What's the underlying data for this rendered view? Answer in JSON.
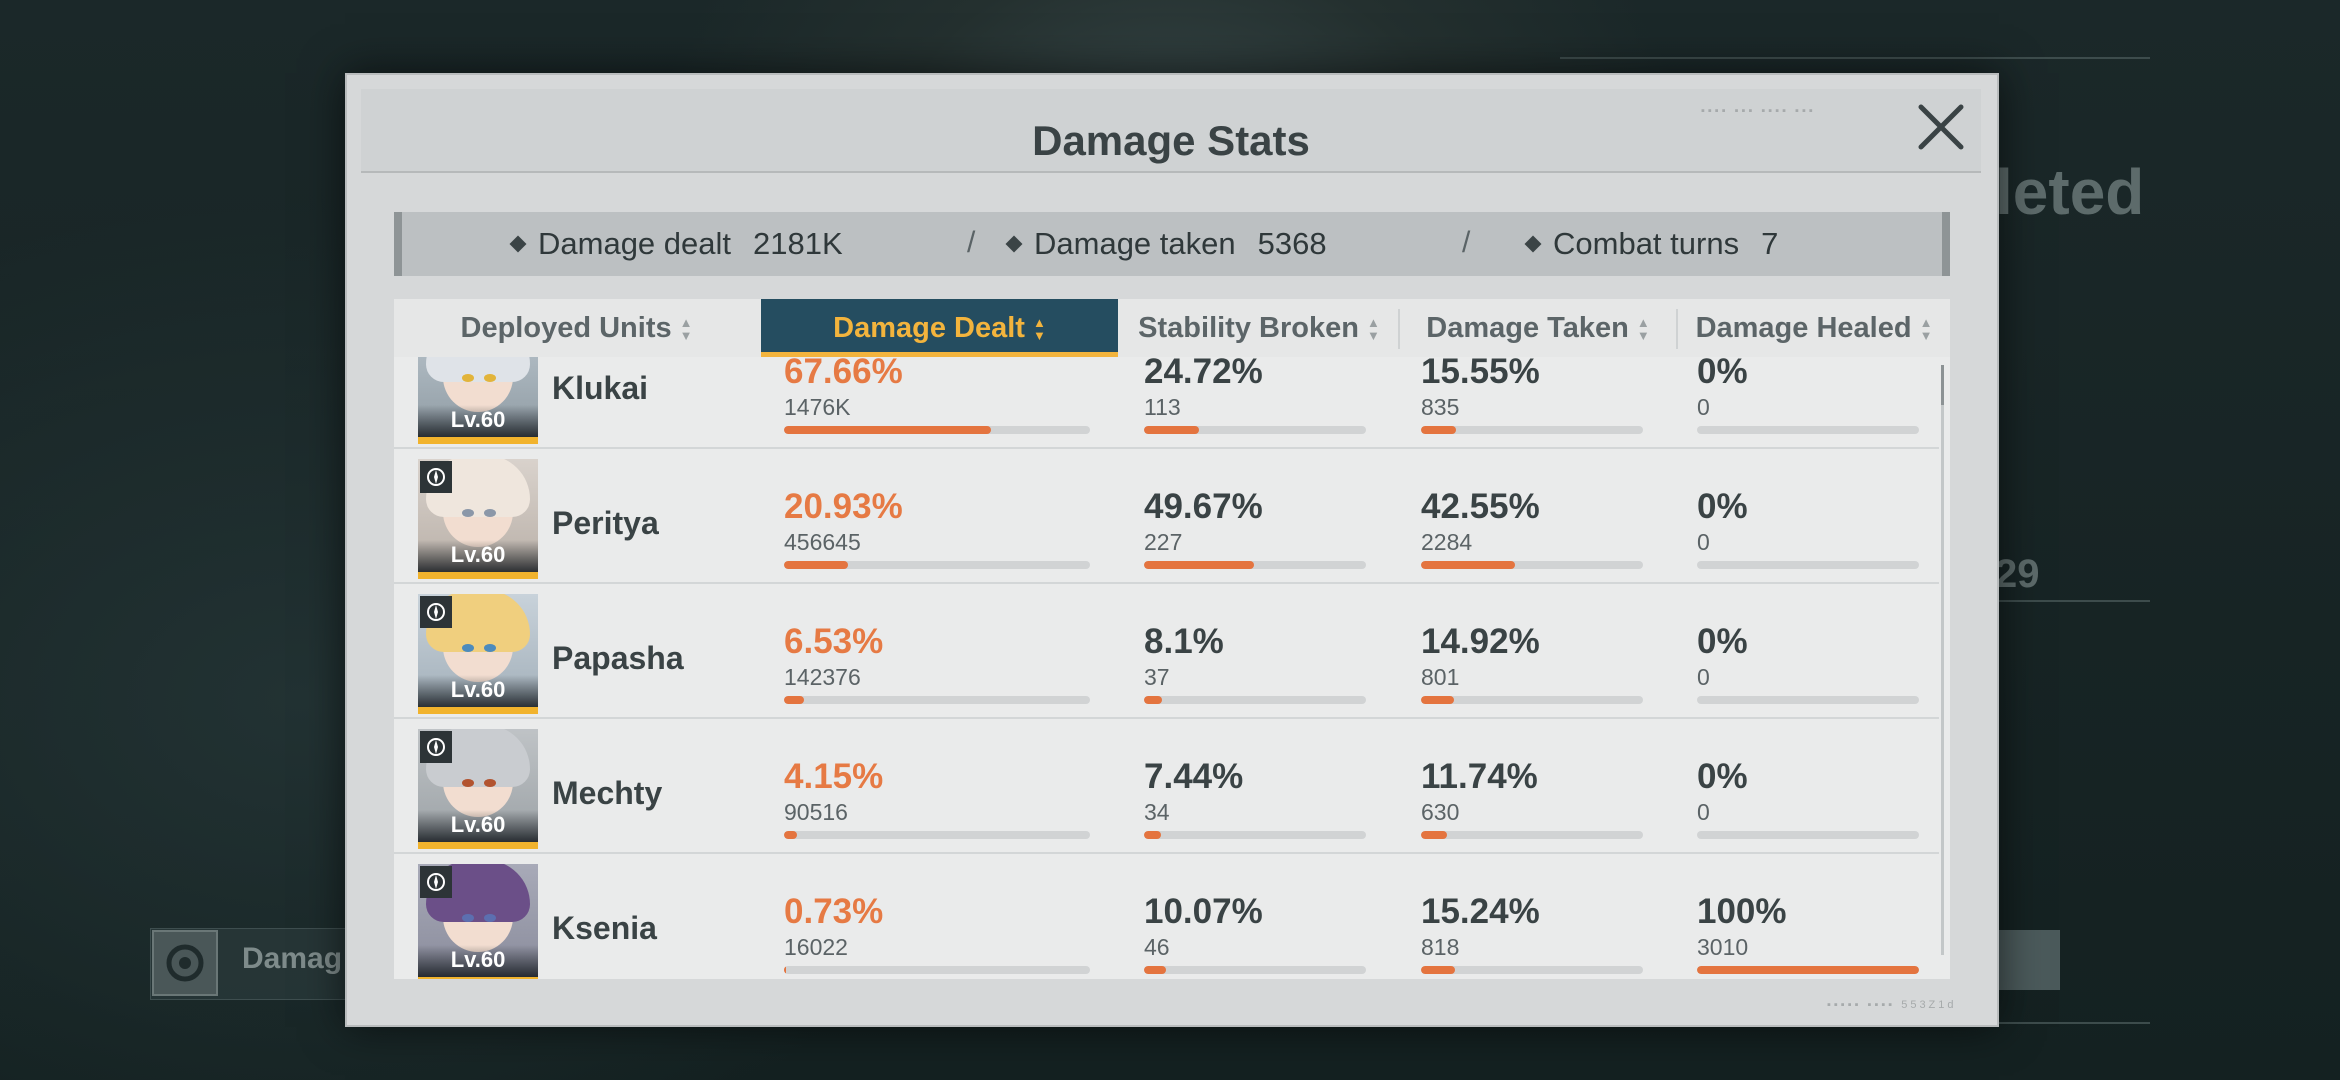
{
  "modal": {
    "title": "Damage Stats"
  },
  "summary": {
    "damage_dealt": {
      "label": "Damage dealt",
      "value": "2181K"
    },
    "damage_taken": {
      "label": "Damage taken",
      "value": "5368"
    },
    "combat_turns": {
      "label": "Combat turns",
      "value": "7"
    },
    "separator": "/"
  },
  "table": {
    "columns": [
      "Deployed Units",
      "Damage Dealt",
      "Stability Broken",
      "Damage Taken",
      "Damage Healed"
    ],
    "active_column": "Damage Dealt",
    "rows": [
      {
        "name": "Klukai",
        "level": "Lv.60",
        "dealt_pct": "67.66%",
        "dealt_val": "1476K",
        "dealt_frac": 0.6766,
        "stab_pct": "24.72%",
        "stab_val": "113",
        "stab_frac": 0.2472,
        "taken_pct": "15.55%",
        "taken_val": "835",
        "taken_frac": 0.1555,
        "healed_pct": "0%",
        "healed_val": "0",
        "healed_frac": 0
      },
      {
        "name": "Peritya",
        "level": "Lv.60",
        "dealt_pct": "20.93%",
        "dealt_val": "456645",
        "dealt_frac": 0.2093,
        "stab_pct": "49.67%",
        "stab_val": "227",
        "stab_frac": 0.4967,
        "taken_pct": "42.55%",
        "taken_val": "2284",
        "taken_frac": 0.4255,
        "healed_pct": "0%",
        "healed_val": "0",
        "healed_frac": 0
      },
      {
        "name": "Papasha",
        "level": "Lv.60",
        "dealt_pct": "6.53%",
        "dealt_val": "142376",
        "dealt_frac": 0.0653,
        "stab_pct": "8.1%",
        "stab_val": "37",
        "stab_frac": 0.081,
        "taken_pct": "14.92%",
        "taken_val": "801",
        "taken_frac": 0.1492,
        "healed_pct": "0%",
        "healed_val": "0",
        "healed_frac": 0
      },
      {
        "name": "Mechty",
        "level": "Lv.60",
        "dealt_pct": "4.15%",
        "dealt_val": "90516",
        "dealt_frac": 0.0415,
        "stab_pct": "7.44%",
        "stab_val": "34",
        "stab_frac": 0.0744,
        "taken_pct": "11.74%",
        "taken_val": "630",
        "taken_frac": 0.1174,
        "healed_pct": "0%",
        "healed_val": "0",
        "healed_frac": 0
      },
      {
        "name": "Ksenia",
        "level": "Lv.60",
        "dealt_pct": "0.73%",
        "dealt_val": "16022",
        "dealt_frac": 0.0073,
        "stab_pct": "10.07%",
        "stab_val": "46",
        "stab_frac": 0.1007,
        "taken_pct": "15.24%",
        "taken_val": "818",
        "taken_frac": 0.1524,
        "healed_pct": "100%",
        "healed_val": "3010",
        "healed_frac": 1.0
      }
    ]
  },
  "background": {
    "right_heading": "leted",
    "right_number": "29",
    "bottom_label": "Damag"
  },
  "colors": {
    "accent_orange": "#e4743f",
    "header_active_bg": "#254d60",
    "header_active_text": "#f3b43d",
    "level_underline": "#f1b32d"
  },
  "icons": {
    "close": "close-icon",
    "sort": "sort-arrows-icon",
    "summary_marker": "diamond-icon",
    "class": "class-badge-icon"
  }
}
